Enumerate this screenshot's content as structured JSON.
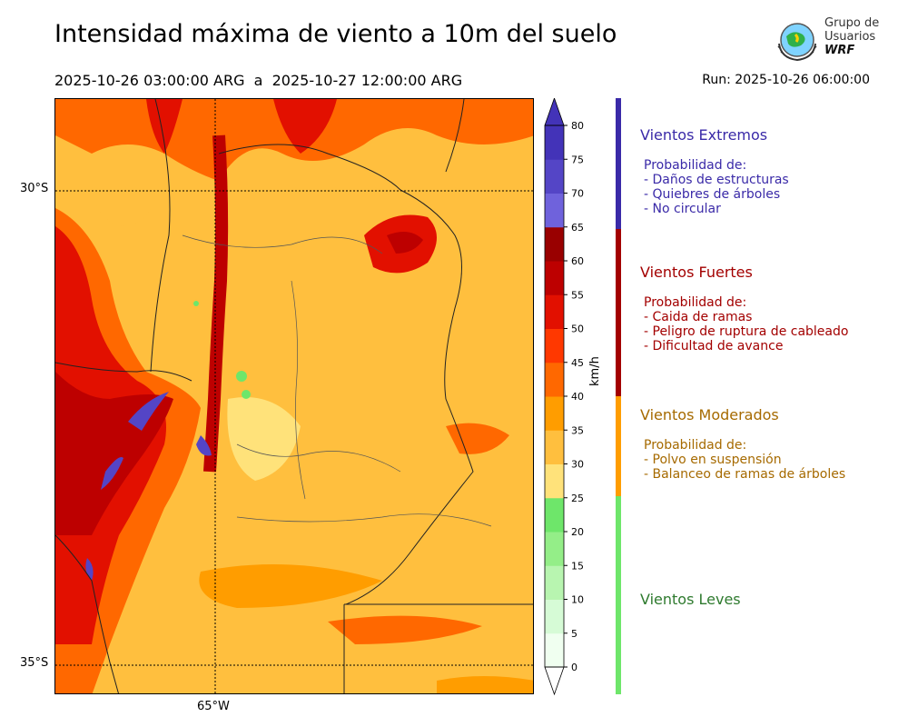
{
  "header": {
    "title": "Intensidad máxima de viento a 10m del suelo",
    "subtitle": "2025-10-26 03:00:00 ARG  a  2025-10-27 12:00:00 ARG",
    "run": "Run: 2025-10-26 06:00:00"
  },
  "logo": {
    "line1": "Grupo de",
    "line2": "Usuarios",
    "line3": "WRF"
  },
  "map": {
    "lat_labels": [
      "30°S",
      "35°S"
    ],
    "lon_labels": [
      "65°W"
    ]
  },
  "colorbar": {
    "unit": "km/h",
    "ticks": [
      "0",
      "5",
      "10",
      "15",
      "20",
      "25",
      "30",
      "35",
      "40",
      "45",
      "50",
      "55",
      "60",
      "65",
      "70",
      "75",
      "80"
    ],
    "colors": [
      "#f0fff0",
      "#d6fbd6",
      "#b8f5b0",
      "#94ee88",
      "#6ee66a",
      "#ffe27a",
      "#ffbf3e",
      "#ff9d00",
      "#ff6800",
      "#ff3800",
      "#e21000",
      "#bd0000",
      "#990000",
      "#6f62dc",
      "#5445c6",
      "#4333b8"
    ]
  },
  "categories": [
    {
      "title": "Vientos Extremos",
      "color": "#3a2aa8",
      "bar_color": "#3a2aa8",
      "lines": [
        "Probabilidad de:",
        "- Daños de estructuras",
        "- Quiebres de árboles",
        "- No circular"
      ]
    },
    {
      "title": "Vientos Fuertes",
      "color": "#a30000",
      "bar_color": "#a30000",
      "lines": [
        "Probabilidad de:",
        "- Caida de ramas",
        "- Peligro de ruptura de cableado",
        "- Dificultad de avance"
      ]
    },
    {
      "title": "Vientos Moderados",
      "color": "#a66a00",
      "bar_color": "#ff9d00",
      "lines": [
        "Probabilidad de:",
        "- Polvo en suspensión",
        "- Balanceo de ramas de árboles"
      ]
    },
    {
      "title": "Vientos Leves",
      "color": "#2e7a2e",
      "bar_color": "#6ee66a",
      "lines": []
    }
  ]
}
